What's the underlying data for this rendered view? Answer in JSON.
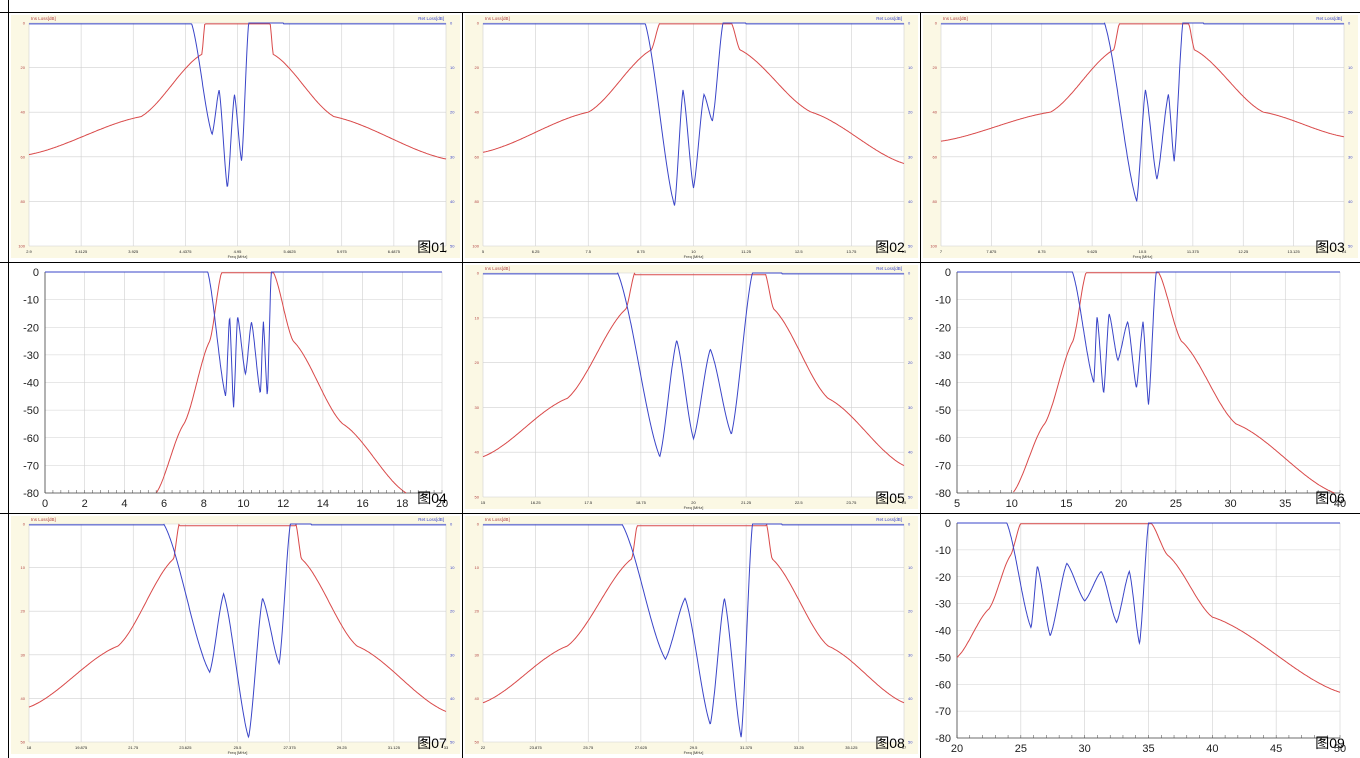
{
  "figure_labels": [
    "图01",
    "图02",
    "图03",
    "图04",
    "图05",
    "图06",
    "图07",
    "图08",
    "图09"
  ],
  "colors": {
    "insertion_loss": "#d94a4a",
    "return_loss": "#3a45c8",
    "panel_bg_yellow": "#fbf8e4",
    "grid": "#d0d0d0",
    "border": "#000000"
  },
  "chart_data": [
    {
      "id": "fig01",
      "style": "small",
      "type": "line",
      "title": "",
      "left_axis_label": "Ins Loss[dB]",
      "right_axis_label": "Ret Loss[dB]",
      "xlabel": "Freq [MHz]",
      "xlim": [
        2.9,
        7.0
      ],
      "x_ticks": [
        "2.9",
        "3.4125",
        "3.925",
        "4.4375",
        "4.95",
        "5.4625",
        "5.975",
        "6.4875",
        "7"
      ],
      "ylim_left": [
        0,
        100
      ],
      "ylim_right": [
        0,
        50
      ],
      "y_ticks_left": [
        "0",
        "20",
        "40",
        "60",
        "80",
        "100"
      ],
      "y_ticks_right": [
        "0",
        "10",
        "20",
        "30",
        "40",
        "50"
      ],
      "passband": [
        4.63,
        5.27
      ],
      "il_skirt_low": [
        [
          2.9,
          59
        ],
        [
          4.0,
          42
        ],
        [
          4.6,
          14
        ],
        [
          4.63,
          0
        ]
      ],
      "il_skirt_high": [
        [
          5.27,
          0
        ],
        [
          5.3,
          14
        ],
        [
          5.9,
          42
        ],
        [
          7.0,
          61
        ]
      ],
      "rl_dips": [
        [
          4.7,
          25
        ],
        [
          4.77,
          15
        ],
        [
          4.85,
          37
        ],
        [
          4.92,
          16
        ],
        [
          4.99,
          31
        ],
        [
          5.06,
          0
        ]
      ],
      "rl_edges": [
        4.62,
        5.28
      ]
    },
    {
      "id": "fig02",
      "style": "small",
      "type": "line",
      "title": "",
      "left_axis_label": "Ins Loss[dB]",
      "right_axis_label": "Ret Loss[dB]",
      "xlabel": "Freq [MHz]",
      "xlim": [
        5,
        15
      ],
      "x_ticks": [
        "5",
        "6.25",
        "7.5",
        "8.75",
        "10",
        "11.25",
        "12.5",
        "13.75",
        "15"
      ],
      "ylim_left": [
        0,
        100
      ],
      "ylim_right": [
        0,
        50
      ],
      "y_ticks_left": [
        "0",
        "20",
        "40",
        "60",
        "80",
        "100"
      ],
      "y_ticks_right": [
        "0",
        "10",
        "20",
        "30",
        "40",
        "50"
      ],
      "passband": [
        9.2,
        10.9
      ],
      "il_skirt_low": [
        [
          5,
          58
        ],
        [
          7.5,
          40
        ],
        [
          9.0,
          12
        ],
        [
          9.2,
          0
        ]
      ],
      "il_skirt_high": [
        [
          10.9,
          0
        ],
        [
          11.1,
          12
        ],
        [
          12.8,
          40
        ],
        [
          15,
          63
        ]
      ],
      "rl_dips": [
        [
          9.55,
          41
        ],
        [
          9.75,
          15
        ],
        [
          10.0,
          37
        ],
        [
          10.25,
          16
        ],
        [
          10.45,
          22
        ],
        [
          10.7,
          0
        ]
      ],
      "rl_edges": [
        9.15,
        10.95
      ]
    },
    {
      "id": "fig03",
      "style": "small",
      "type": "line",
      "title": "",
      "left_axis_label": "Ins Loss[dB]",
      "right_axis_label": "Ret Loss[dB]",
      "xlabel": "Freq [MHz]",
      "xlim": [
        7,
        14
      ],
      "x_ticks": [
        "7",
        "7.875",
        "8.75",
        "9.625",
        "10.5",
        "11.375",
        "12.25",
        "13.125",
        "14"
      ],
      "ylim_left": [
        0,
        100
      ],
      "ylim_right": [
        0,
        50
      ],
      "y_ticks_left": [
        "0",
        "20",
        "40",
        "60",
        "80",
        "100"
      ],
      "y_ticks_right": [
        "0",
        "10",
        "20",
        "30",
        "40",
        "50"
      ],
      "passband": [
        10.1,
        11.3
      ],
      "il_skirt_low": [
        [
          7,
          53
        ],
        [
          8.9,
          40
        ],
        [
          10.0,
          12
        ],
        [
          10.1,
          0
        ]
      ],
      "il_skirt_high": [
        [
          11.3,
          0
        ],
        [
          11.4,
          12
        ],
        [
          12.6,
          40
        ],
        [
          14,
          51
        ]
      ],
      "rl_dips": [
        [
          10.4,
          40
        ],
        [
          10.55,
          15
        ],
        [
          10.75,
          35
        ],
        [
          10.95,
          16
        ],
        [
          11.05,
          31
        ],
        [
          11.2,
          0
        ]
      ],
      "rl_edges": [
        10.05,
        11.35
      ]
    },
    {
      "id": "fig04",
      "style": "large",
      "type": "line",
      "title": "",
      "xlim": [
        0,
        20
      ],
      "x_ticks": [
        "0",
        "2",
        "4",
        "6",
        "8",
        "10",
        "12",
        "14",
        "16",
        "18",
        "20"
      ],
      "ylim": [
        -80,
        0
      ],
      "y_ticks": [
        "0",
        "-10",
        "-20",
        "-30",
        "-40",
        "-50",
        "-60",
        "-70",
        "-80"
      ],
      "passband": [
        8.9,
        11.5
      ],
      "il_skirt_low": [
        [
          5.6,
          -80
        ],
        [
          7.0,
          -55
        ],
        [
          8.3,
          -25
        ],
        [
          8.9,
          0
        ]
      ],
      "il_skirt_high": [
        [
          11.5,
          0
        ],
        [
          12.5,
          -25
        ],
        [
          15.0,
          -55
        ],
        [
          18.2,
          -80
        ]
      ],
      "rl_dips": [
        [
          9.1,
          -45
        ],
        [
          9.3,
          -16
        ],
        [
          9.5,
          -49
        ],
        [
          9.7,
          -16
        ],
        [
          10.1,
          -37
        ],
        [
          10.4,
          -18
        ],
        [
          10.85,
          -44
        ],
        [
          11.0,
          -18
        ],
        [
          11.2,
          -45
        ],
        [
          11.4,
          0
        ]
      ],
      "rl_edges": [
        8.8,
        11.6
      ]
    },
    {
      "id": "fig05",
      "style": "small",
      "type": "line",
      "title": "",
      "left_axis_label": "Ins Loss[dB]",
      "right_axis_label": "Ret Loss[dB]",
      "xlabel": "Freq [MHz]",
      "xlim": [
        15,
        25
      ],
      "x_ticks": [
        "15",
        "16.25",
        "17.5",
        "18.75",
        "20",
        "21.25",
        "22.5",
        "23.75",
        "25"
      ],
      "ylim_left": [
        0,
        50
      ],
      "ylim_right": [
        0,
        50
      ],
      "y_ticks_left": [
        "0",
        "10",
        "20",
        "30",
        "40",
        "50"
      ],
      "y_ticks_right": [
        "0",
        "10",
        "20",
        "30",
        "40",
        "50"
      ],
      "passband": [
        18.6,
        21.7
      ],
      "il_skirt_low": [
        [
          15,
          41
        ],
        [
          17.0,
          28
        ],
        [
          18.4,
          8
        ],
        [
          18.6,
          0
        ]
      ],
      "il_skirt_high": [
        [
          21.7,
          0
        ],
        [
          21.9,
          8
        ],
        [
          23.2,
          28
        ],
        [
          25,
          43
        ]
      ],
      "rl_dips": [
        [
          19.2,
          41
        ],
        [
          19.6,
          15
        ],
        [
          20.0,
          37
        ],
        [
          20.4,
          17
        ],
        [
          20.9,
          36
        ],
        [
          21.4,
          0
        ]
      ],
      "rl_edges": [
        18.5,
        21.8
      ]
    },
    {
      "id": "fig06",
      "style": "large",
      "type": "line",
      "title": "",
      "xlim": [
        5,
        40
      ],
      "x_ticks": [
        "5",
        "10",
        "15",
        "20",
        "25",
        "30",
        "35",
        "40"
      ],
      "ylim": [
        -80,
        0
      ],
      "y_ticks": [
        "0",
        "-10",
        "-20",
        "-30",
        "-40",
        "-50",
        "-60",
        "-70",
        "-80"
      ],
      "passband": [
        16.8,
        23.4
      ],
      "il_skirt_low": [
        [
          10.1,
          -80
        ],
        [
          13.0,
          -55
        ],
        [
          15.6,
          -25
        ],
        [
          16.8,
          0
        ]
      ],
      "il_skirt_high": [
        [
          23.4,
          0
        ],
        [
          25.5,
          -25
        ],
        [
          30.5,
          -55
        ],
        [
          39.5,
          -80
        ]
      ],
      "rl_dips": [
        [
          17.5,
          -40
        ],
        [
          17.8,
          -16
        ],
        [
          18.4,
          -44
        ],
        [
          18.9,
          -15
        ],
        [
          19.7,
          -32
        ],
        [
          20.6,
          -18
        ],
        [
          21.4,
          -42
        ],
        [
          22.0,
          -18
        ],
        [
          22.5,
          -48
        ],
        [
          23.2,
          0
        ]
      ],
      "rl_edges": [
        16.6,
        23.6
      ]
    },
    {
      "id": "fig07",
      "style": "small",
      "type": "line",
      "title": "",
      "left_axis_label": "Ins Loss[dB]",
      "right_axis_label": "Ret Loss[dB]",
      "xlabel": "Freq [MHz]",
      "xlim": [
        18,
        33
      ],
      "x_ticks": [
        "18",
        "19.875",
        "21.75",
        "23.625",
        "25.5",
        "27.375",
        "29.25",
        "31.125",
        "33"
      ],
      "ylim_left": [
        0,
        50
      ],
      "ylim_right": [
        0,
        50
      ],
      "y_ticks_left": [
        "0",
        "10",
        "20",
        "30",
        "40",
        "50"
      ],
      "y_ticks_right": [
        "0",
        "10",
        "20",
        "30",
        "40",
        "50"
      ],
      "passband": [
        23.4,
        27.6
      ],
      "il_skirt_low": [
        [
          18,
          42
        ],
        [
          21.2,
          28
        ],
        [
          23.2,
          8
        ],
        [
          23.4,
          0
        ]
      ],
      "il_skirt_high": [
        [
          27.6,
          0
        ],
        [
          27.8,
          8
        ],
        [
          29.8,
          28
        ],
        [
          33,
          43
        ]
      ],
      "rl_dips": [
        [
          24.5,
          34
        ],
        [
          25.0,
          16
        ],
        [
          25.9,
          49
        ],
        [
          26.4,
          17
        ],
        [
          27.0,
          32
        ],
        [
          27.4,
          0
        ]
      ],
      "rl_edges": [
        23.3,
        27.7
      ]
    },
    {
      "id": "fig08",
      "style": "small",
      "type": "line",
      "title": "",
      "left_axis_label": "Ins Loss[dB]",
      "right_axis_label": "Ret Loss[dB]",
      "xlabel": "Freq [MHz]",
      "xlim": [
        22,
        37
      ],
      "x_ticks": [
        "22",
        "23.875",
        "25.75",
        "27.625",
        "29.5",
        "31.375",
        "33.25",
        "35.125",
        "37"
      ],
      "ylim_left": [
        0,
        50
      ],
      "ylim_right": [
        0,
        50
      ],
      "y_ticks_left": [
        "0",
        "10",
        "20",
        "30",
        "40",
        "50"
      ],
      "y_ticks_right": [
        "0",
        "10",
        "20",
        "30",
        "40",
        "50"
      ],
      "passband": [
        27.5,
        32.1
      ],
      "il_skirt_low": [
        [
          22,
          41
        ],
        [
          25.0,
          28
        ],
        [
          27.3,
          8
        ],
        [
          27.5,
          0
        ]
      ],
      "il_skirt_high": [
        [
          32.1,
          0
        ],
        [
          32.3,
          8
        ],
        [
          34.3,
          28
        ],
        [
          37,
          41
        ]
      ],
      "rl_dips": [
        [
          28.5,
          31
        ],
        [
          29.2,
          17
        ],
        [
          30.1,
          46
        ],
        [
          30.6,
          17
        ],
        [
          31.2,
          49
        ],
        [
          31.6,
          0
        ]
      ],
      "rl_edges": [
        27.4,
        32.2
      ]
    },
    {
      "id": "fig09",
      "style": "large",
      "type": "line",
      "title": "",
      "xlim": [
        20,
        50
      ],
      "x_ticks": [
        "20",
        "25",
        "30",
        "35",
        "40",
        "45",
        "50"
      ],
      "ylim": [
        -80,
        0
      ],
      "y_ticks": [
        "0",
        "-10",
        "-20",
        "-30",
        "-40",
        "-50",
        "-60",
        "-70",
        "-80"
      ],
      "passband": [
        25.0,
        35.2
      ],
      "il_skirt_low": [
        [
          20.0,
          -50
        ],
        [
          22.5,
          -32
        ],
        [
          24.2,
          -12
        ],
        [
          25.0,
          0
        ]
      ],
      "il_skirt_high": [
        [
          35.2,
          0
        ],
        [
          36.5,
          -12
        ],
        [
          40.0,
          -35
        ],
        [
          50.0,
          -63
        ]
      ],
      "rl_dips": [
        [
          25.8,
          -39
        ],
        [
          26.3,
          -16
        ],
        [
          27.3,
          -42
        ],
        [
          28.6,
          -15
        ],
        [
          30.0,
          -29
        ],
        [
          31.3,
          -18
        ],
        [
          32.5,
          -37
        ],
        [
          33.5,
          -18
        ],
        [
          34.3,
          -45
        ],
        [
          35.0,
          0
        ]
      ],
      "rl_edges": [
        24.8,
        35.4
      ]
    }
  ]
}
